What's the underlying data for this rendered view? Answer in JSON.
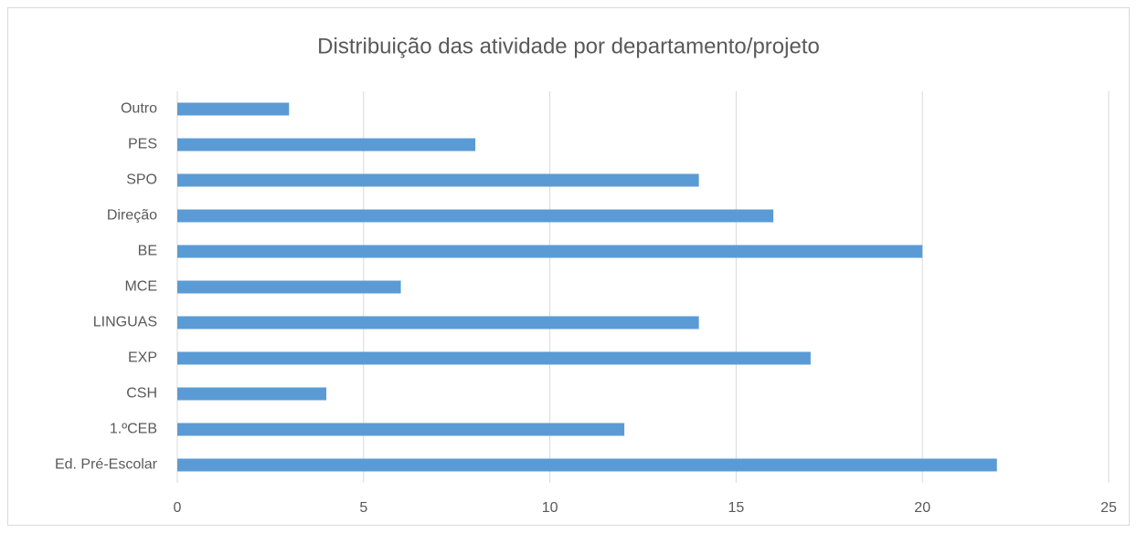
{
  "chart_data": {
    "type": "hbar",
    "title": "Distribuição das atividade por departamento/projeto",
    "categories": [
      "Outro",
      "PES",
      "SPO",
      "Direção",
      "BE",
      "MCE",
      "LINGUAS",
      "EXP",
      "CSH",
      "1.ºCEB",
      "Ed. Pré-Escolar"
    ],
    "values": [
      3,
      8,
      14,
      16,
      20,
      6,
      14,
      17,
      4,
      12,
      22
    ],
    "color": "#5b9bd5",
    "xlim": [
      0,
      25
    ],
    "xticks": [
      0,
      5,
      10,
      15,
      20,
      25
    ],
    "grid": true
  }
}
